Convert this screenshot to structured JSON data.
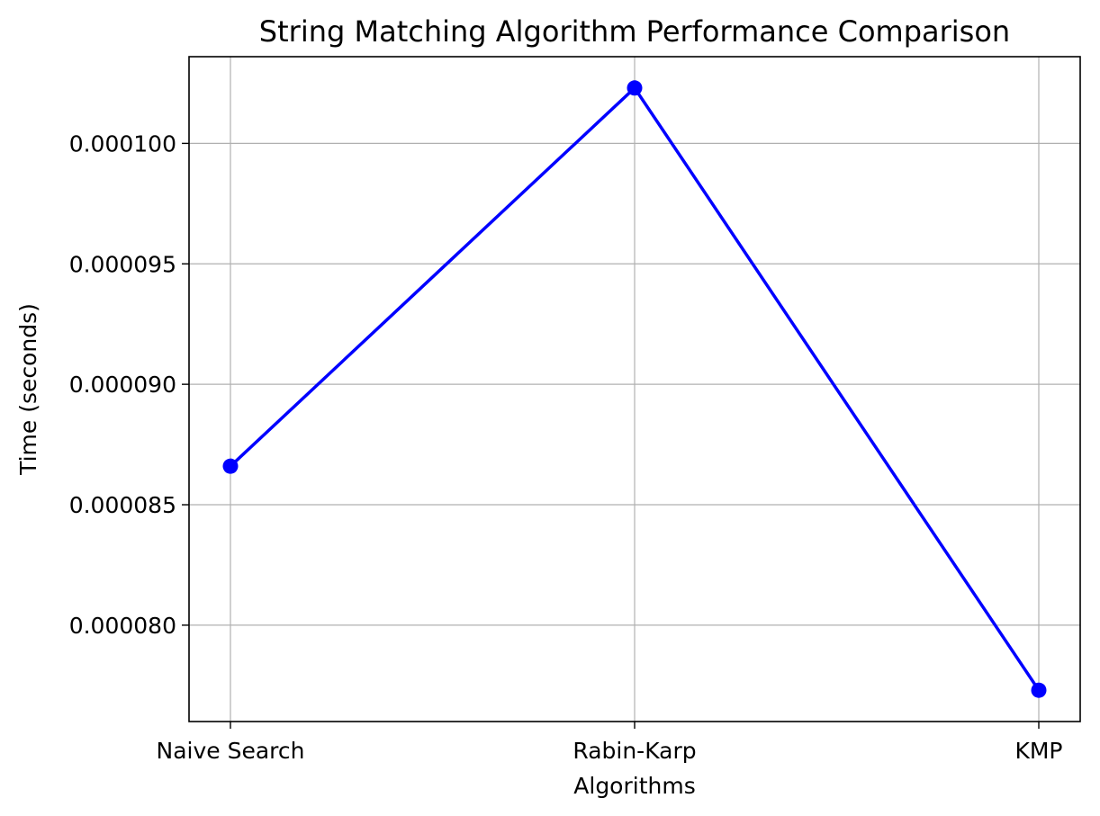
{
  "chart_data": {
    "type": "line",
    "title": "String Matching Algorithm Performance Comparison",
    "xlabel": "Algorithms",
    "ylabel": "Time (seconds)",
    "categories": [
      "Naive Search",
      "Rabin-Karp",
      "KMP"
    ],
    "series": [
      {
        "values": [
          8.66e-05,
          0.0001023,
          7.73e-05
        ],
        "color": "#0000ff",
        "marker": "circle"
      }
    ],
    "ylim": [
      7.6e-05,
      0.0001036
    ],
    "yticks": [
      8e-05,
      8.5e-05,
      9e-05,
      9.5e-05,
      0.0001
    ],
    "ytick_labels": [
      "0.000080",
      "0.000085",
      "0.000090",
      "0.000095",
      "0.000100"
    ],
    "grid": true,
    "grid_color": "#b0b0b0",
    "axis_color": "#000000"
  }
}
